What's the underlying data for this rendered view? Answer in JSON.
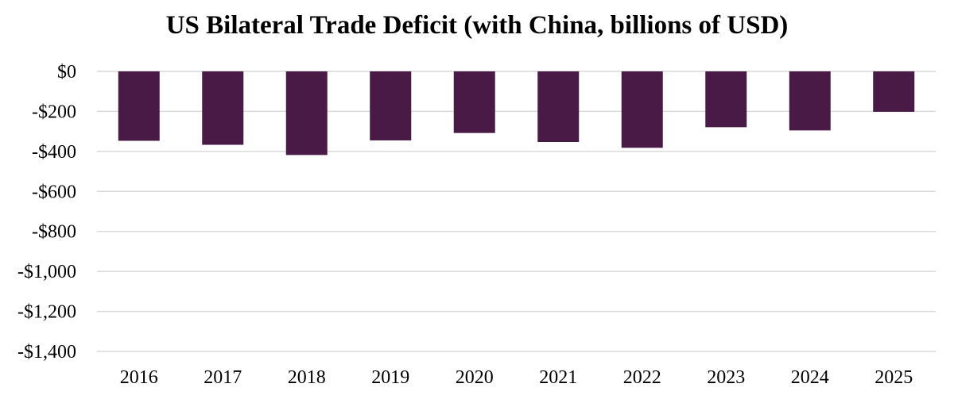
{
  "chart_data": {
    "type": "bar",
    "title": "US Bilateral Trade Deficit (with China, billions of USD)",
    "xlabel": "",
    "ylabel": "",
    "categories": [
      "2016",
      "2017",
      "2018",
      "2019",
      "2020",
      "2021",
      "2022",
      "2023",
      "2024",
      "2025"
    ],
    "series": [
      {
        "name": "US Bilateral Trade Deficit with China",
        "values": [
          -347,
          -367,
          -418,
          -345,
          -308,
          -353,
          -382,
          -279,
          -295,
          -202
        ]
      }
    ],
    "ylim": [
      -1400,
      0
    ],
    "yticks": [
      0,
      -200,
      -400,
      -600,
      -800,
      -1000,
      -1200,
      -1400
    ],
    "ytick_labels": [
      "$0",
      "-$200",
      "-$400",
      "-$600",
      "-$800",
      "-$1,000",
      "-$1,200",
      "-$1,400"
    ],
    "grid": true,
    "legend": "none",
    "bar_color": "#4a1a47",
    "grid_color": "#d9d9d9"
  }
}
